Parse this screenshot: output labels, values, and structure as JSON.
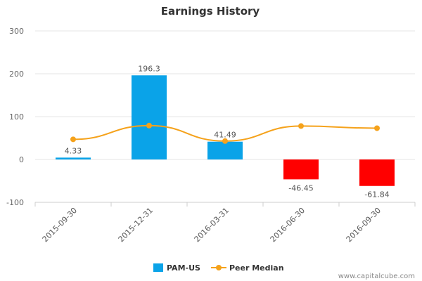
{
  "chart_data": {
    "type": "bar",
    "title": "Earnings History",
    "categories": [
      "2015-09-30",
      "2015-12-31",
      "2016-03-31",
      "2016-06-30",
      "2016-09-30"
    ],
    "series": [
      {
        "name": "PAM-US",
        "kind": "bar",
        "values": [
          4.33,
          196.3,
          41.49,
          -46.45,
          -61.84
        ],
        "data_labels": [
          "4.33",
          "196.3",
          "41.49",
          "-46.45",
          "-61.84"
        ],
        "color_positive": "#0aa3e8",
        "color_negative": "#ff0000"
      },
      {
        "name": "Peer Median",
        "kind": "line",
        "values": [
          47,
          79,
          43,
          78,
          73
        ],
        "color": "#f5a21b"
      }
    ],
    "yticks": [
      -100,
      0,
      100,
      200,
      300
    ],
    "ylim": [
      -100,
      300
    ],
    "xlabel": "",
    "ylabel": "",
    "grid": true,
    "legend_position": "bottom-center"
  },
  "credit": "www.capitalcube.com"
}
